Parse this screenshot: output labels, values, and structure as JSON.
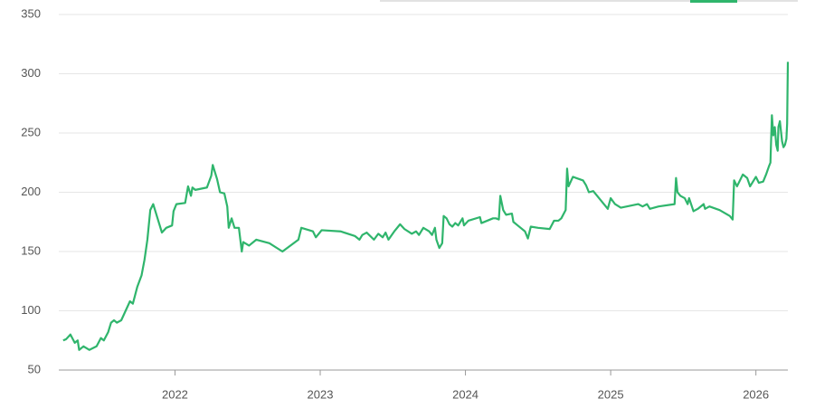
{
  "chart_data": {
    "type": "line",
    "x": [
      2021.23,
      2021.25,
      2021.28,
      2021.31,
      2021.33,
      2021.34,
      2021.37,
      2021.41,
      2021.46,
      2021.49,
      2021.51,
      2021.54,
      2021.56,
      2021.58,
      2021.6,
      2021.63,
      2021.66,
      2021.69,
      2021.71,
      2021.74,
      2021.77,
      2021.79,
      2021.81,
      2021.83,
      2021.85,
      2021.88,
      2021.91,
      2021.94,
      2021.98,
      2021.99,
      2022.01,
      2022.07,
      2022.09,
      2022.11,
      2022.12,
      2022.14,
      2022.22,
      2022.25,
      2022.26,
      2022.29,
      2022.31,
      2022.34,
      2022.36,
      2022.37,
      2022.39,
      2022.41,
      2022.44,
      2022.46,
      2022.47,
      2022.51,
      2022.56,
      2022.65,
      2022.74,
      2022.85,
      2022.87,
      2022.95,
      2022.97,
      2023.01,
      2023.14,
      2023.24,
      2023.27,
      2023.29,
      2023.32,
      2023.37,
      2023.4,
      2023.43,
      2023.45,
      2023.47,
      2023.51,
      2023.55,
      2023.58,
      2023.63,
      2023.66,
      2023.68,
      2023.71,
      2023.75,
      2023.77,
      2023.79,
      2023.8,
      2023.82,
      2023.84,
      2023.85,
      2023.87,
      2023.89,
      2023.91,
      2023.93,
      2023.95,
      2023.98,
      2023.99,
      2024.02,
      2024.1,
      2024.11,
      2024.15,
      2024.19,
      2024.21,
      2024.23,
      2024.24,
      2024.26,
      2024.28,
      2024.32,
      2024.33,
      2024.36,
      2024.41,
      2024.43,
      2024.45,
      2024.5,
      2024.58,
      2024.61,
      2024.64,
      2024.66,
      2024.69,
      2024.7,
      2024.71,
      2024.74,
      2024.81,
      2024.83,
      2024.85,
      2024.88,
      2024.98,
      2025.0,
      2025.03,
      2025.07,
      2025.19,
      2025.22,
      2025.25,
      2025.27,
      2025.33,
      2025.44,
      2025.45,
      2025.46,
      2025.48,
      2025.51,
      2025.53,
      2025.54,
      2025.57,
      2025.6,
      2025.64,
      2025.65,
      2025.68,
      2025.75,
      2025.82,
      2025.84,
      2025.85,
      2025.87,
      2025.91,
      2025.94,
      2025.96,
      2026.0,
      2026.02,
      2026.05,
      2026.07,
      2026.09,
      2026.1,
      2026.11,
      2026.12,
      2026.13,
      2026.14,
      2026.15,
      2026.155,
      2026.165,
      2026.18,
      2026.19,
      2026.2,
      2026.21,
      2026.215,
      2026.22
    ],
    "values": [
      75,
      76,
      80,
      73,
      75,
      67,
      70,
      67,
      70,
      77,
      75,
      82,
      90,
      92,
      90,
      92,
      100,
      108,
      106,
      120,
      130,
      143,
      160,
      185,
      190,
      178,
      166,
      170,
      172,
      184,
      190,
      191,
      205,
      197,
      204,
      202,
      204,
      214,
      223,
      211,
      200,
      199,
      188,
      170,
      178,
      170,
      170,
      150,
      158,
      155,
      160,
      157,
      150,
      160,
      170,
      167,
      162,
      168,
      167,
      163,
      160,
      164,
      166,
      160,
      165,
      162,
      166,
      160,
      167,
      173,
      169,
      165,
      167,
      164,
      170,
      167,
      164,
      170,
      160,
      153,
      157,
      180,
      178,
      173,
      171,
      174,
      172,
      178,
      172,
      176,
      179,
      174,
      176,
      178,
      178,
      177,
      197,
      185,
      181,
      182,
      175,
      172,
      167,
      161,
      171,
      170,
      169,
      176,
      176,
      178,
      185,
      220,
      205,
      213,
      210,
      206,
      200,
      201,
      186,
      195,
      190,
      187,
      190,
      188,
      190,
      186,
      188,
      190,
      212,
      200,
      197,
      195,
      190,
      195,
      184,
      186,
      190,
      186,
      188,
      185,
      180,
      177,
      210,
      205,
      215,
      212,
      205,
      213,
      208,
      209,
      215,
      222,
      225,
      265,
      248,
      255,
      240,
      235,
      255,
      260,
      243,
      238,
      240,
      245,
      258,
      310
    ],
    "color": "#2fb56c",
    "xlim": [
      2021.2,
      2026.22
    ],
    "xticks": [
      2022,
      2023,
      2024,
      2025,
      2026
    ],
    "ylim": [
      50,
      350
    ],
    "yticks": [
      50,
      100,
      150,
      200,
      250,
      300,
      350
    ],
    "grid": true
  }
}
